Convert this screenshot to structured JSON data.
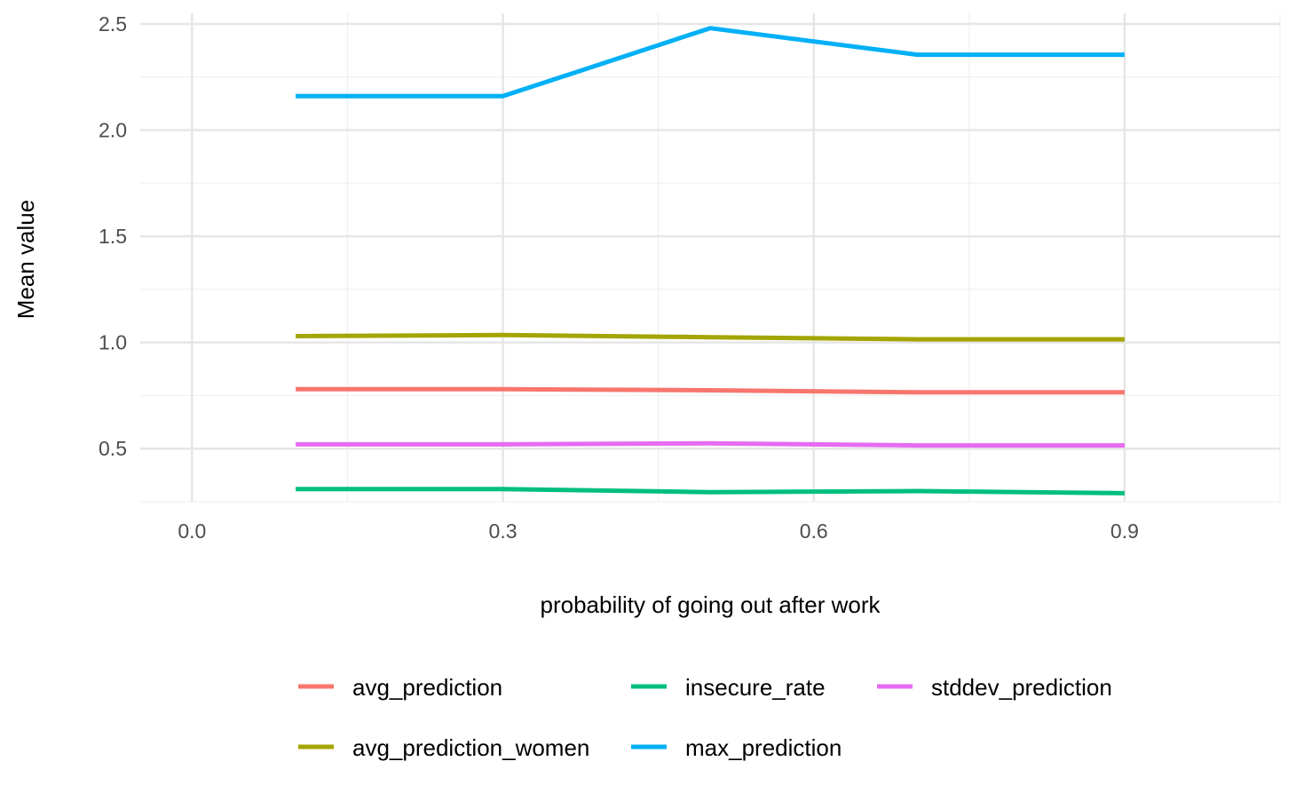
{
  "chart_data": {
    "type": "line",
    "xlabel": "probability of going out after work",
    "ylabel": "Mean value",
    "xlim": [
      -0.05,
      1.05
    ],
    "ylim": [
      0.25,
      2.55
    ],
    "x_ticks": [
      0.0,
      0.3,
      0.6,
      0.9
    ],
    "x_tick_labels": [
      "0.0",
      "0.3",
      "0.6",
      "0.9"
    ],
    "x_minor_ticks": [
      0.15,
      0.45,
      0.75,
      1.05
    ],
    "y_ticks": [
      0.5,
      1.0,
      1.5,
      2.0,
      2.5
    ],
    "y_tick_labels": [
      "0.5",
      "1.0",
      "1.5",
      "2.0",
      "2.5"
    ],
    "y_minor_ticks": [
      0.25,
      0.75,
      1.25,
      1.75,
      2.25
    ],
    "grid": true,
    "legend_position": "bottom",
    "x": [
      0.1,
      0.3,
      0.5,
      0.7,
      0.9
    ],
    "series": [
      {
        "name": "avg_prediction",
        "color": "#F8766D",
        "values": [
          0.78,
          0.78,
          0.775,
          0.765,
          0.765
        ]
      },
      {
        "name": "avg_prediction_women",
        "color": "#A3A500",
        "values": [
          1.03,
          1.035,
          1.025,
          1.015,
          1.015
        ]
      },
      {
        "name": "insecure_rate",
        "color": "#00BF7D",
        "values": [
          0.31,
          0.31,
          0.295,
          0.3,
          0.29
        ]
      },
      {
        "name": "max_prediction",
        "color": "#00B0F6",
        "values": [
          2.16,
          2.16,
          2.48,
          2.355,
          2.355
        ]
      },
      {
        "name": "stddev_prediction",
        "color": "#E76BF3",
        "values": [
          0.52,
          0.52,
          0.525,
          0.515,
          0.515
        ]
      }
    ]
  }
}
